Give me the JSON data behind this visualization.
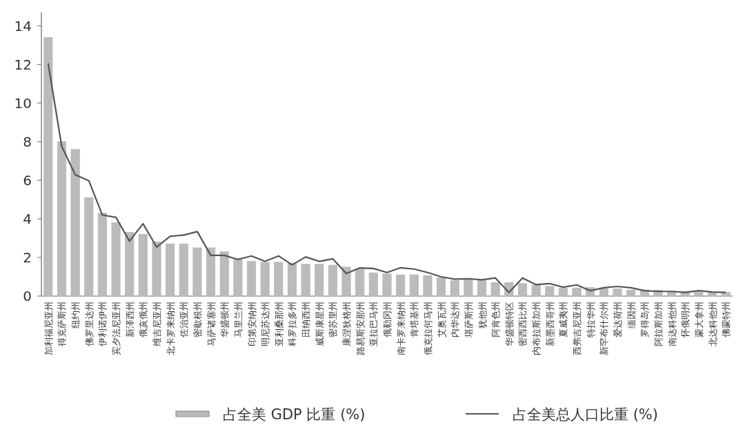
{
  "chart_data": {
    "type": "bar",
    "categories": [
      "加利福尼亚州",
      "得克萨斯州",
      "纽约州",
      "佛罗里达州",
      "伊利诺伊州",
      "宾夕法尼亚州",
      "新泽西州",
      "俄亥俄州",
      "维吉尼亚州",
      "北卡罗来纳州",
      "佐治亚州",
      "密歇根州",
      "马萨诸塞州",
      "华盛顿州",
      "马里兰州",
      "印第安纳州",
      "明尼苏达州",
      "亚利桑那州",
      "科罗拉多州",
      "田纳西州",
      "威斯康星州",
      "密苏里州",
      "康涅狄格州",
      "路易斯安那州",
      "亚拉巴马州",
      "俄勒冈州",
      "南卡罗来纳州",
      "肯塔基州",
      "俄克拉何马州",
      "艾奥瓦州",
      "内华达州",
      "堪萨斯州",
      "犹他州",
      "阿肯色州",
      "华盛顿特区",
      "密西西比州",
      "内布拉斯加州",
      "新墨西哥州",
      "夏威夷州",
      "西弗吉尼亚州",
      "特拉华州",
      "新罕布什尔州",
      "爱达荷州",
      "缅因州",
      "罗得岛州",
      "阿拉斯加州",
      "南达科他州",
      "怀俄明州",
      "蒙大拿州",
      "北达科他州",
      "佛蒙特州"
    ],
    "series": [
      {
        "name": "占全美 GDP 比重 (%)",
        "color": "#bbbbbb",
        "values": [
          13.4,
          8.0,
          7.6,
          5.1,
          4.3,
          3.8,
          3.3,
          3.2,
          2.8,
          2.7,
          2.7,
          2.5,
          2.5,
          2.3,
          1.95,
          1.8,
          1.75,
          1.75,
          1.7,
          1.65,
          1.65,
          1.6,
          1.5,
          1.4,
          1.2,
          1.15,
          1.1,
          1.1,
          1.05,
          0.95,
          0.8,
          0.85,
          0.8,
          0.7,
          0.7,
          0.65,
          0.55,
          0.5,
          0.4,
          0.42,
          0.44,
          0.38,
          0.38,
          0.31,
          0.31,
          0.3,
          0.24,
          0.24,
          0.21,
          0.19,
          0.19
        ]
      },
      {
        "name": "占全美总人口比重 (%)",
        "type": "line",
        "color": "#555555",
        "values": [
          12.06,
          7.76,
          6.29,
          5.98,
          4.2,
          4.08,
          2.85,
          3.75,
          2.54,
          3.1,
          3.16,
          3.34,
          2.11,
          2.11,
          1.9,
          2.08,
          1.8,
          2.08,
          1.62,
          2.03,
          1.8,
          1.93,
          1.17,
          1.46,
          1.43,
          1.22,
          1.47,
          1.4,
          1.22,
          1.0,
          0.88,
          0.9,
          0.84,
          0.94,
          0.19,
          0.94,
          0.59,
          0.65,
          0.46,
          0.58,
          0.28,
          0.43,
          0.5,
          0.43,
          0.28,
          0.24,
          0.24,
          0.19,
          0.28,
          0.21,
          0.19
        ]
      }
    ],
    "ylim": [
      0,
      14.7
    ],
    "yticks": [
      0,
      2,
      4,
      6,
      8,
      10,
      12,
      14
    ],
    "legend": "bottom"
  }
}
